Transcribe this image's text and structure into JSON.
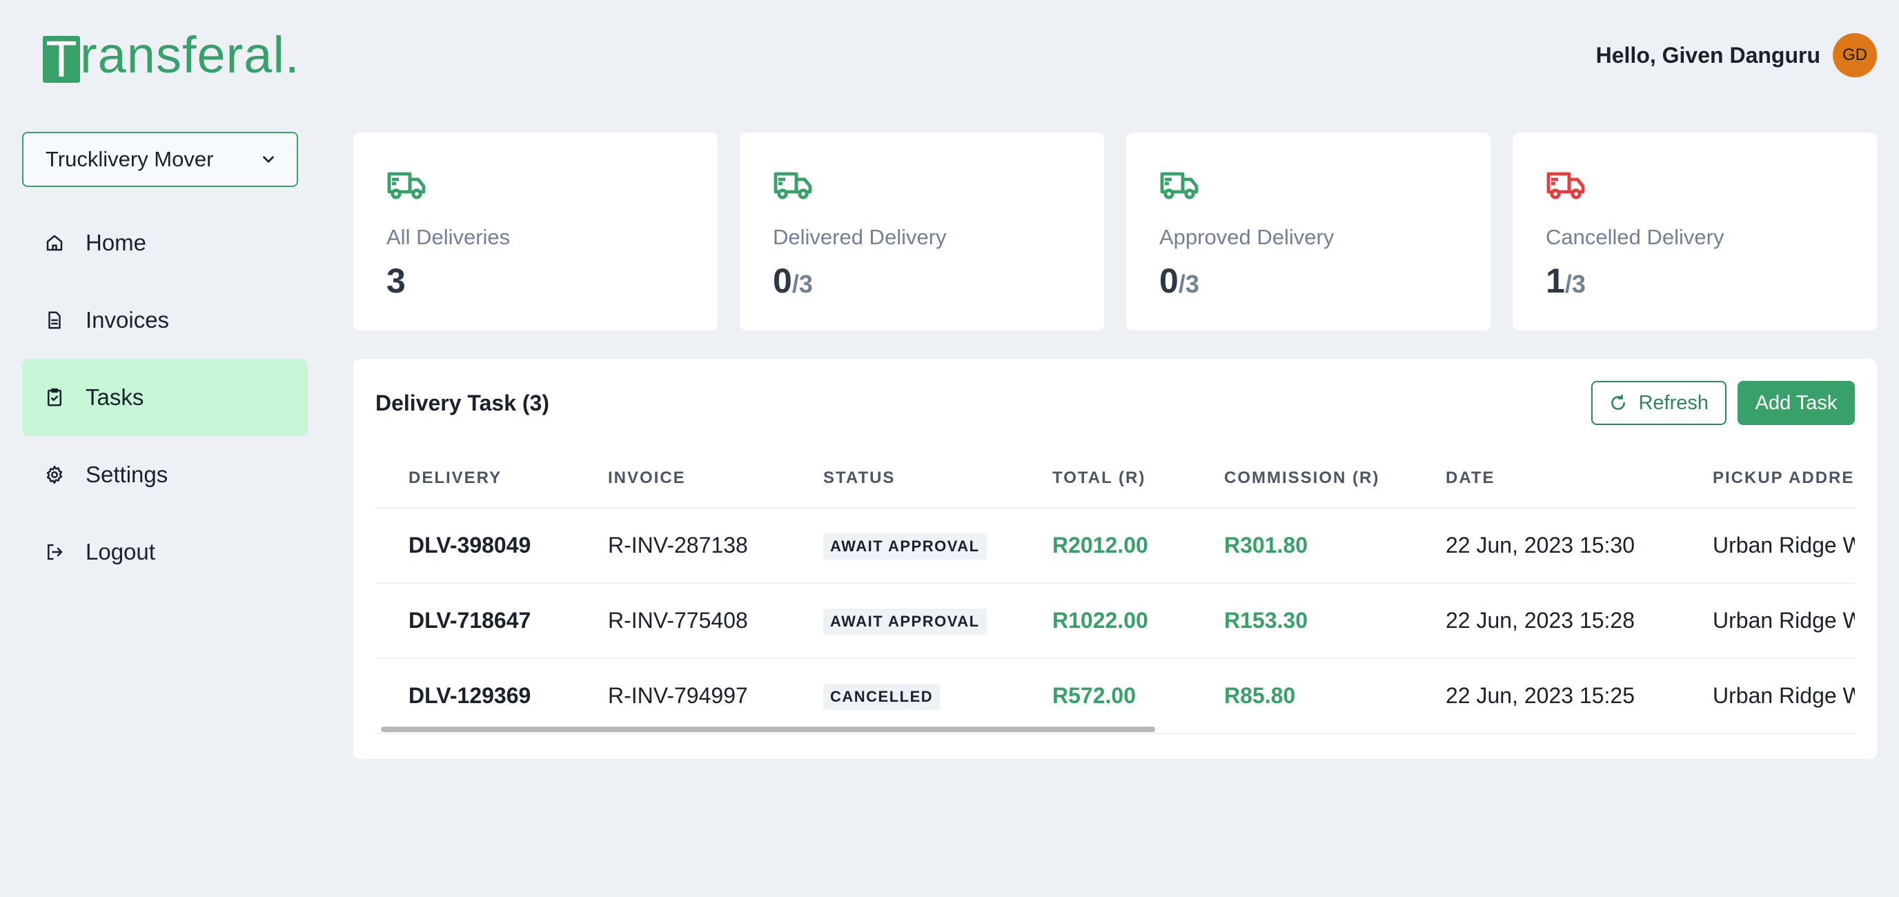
{
  "brand": {
    "logo_initial": "T",
    "logo_rest": "ransferal."
  },
  "header": {
    "greeting": "Hello, Given Danguru",
    "avatar_initials": "GD"
  },
  "sidebar": {
    "company_select": {
      "value": "Trucklivery Mover"
    },
    "items": [
      {
        "label": "Home",
        "icon": "home-icon",
        "active": false
      },
      {
        "label": "Invoices",
        "icon": "file-icon",
        "active": false
      },
      {
        "label": "Tasks",
        "icon": "clipboard-check-icon",
        "active": true
      },
      {
        "label": "Settings",
        "icon": "gear-icon",
        "active": false
      },
      {
        "label": "Logout",
        "icon": "logout-icon",
        "active": false
      }
    ]
  },
  "stats": [
    {
      "label": "All Deliveries",
      "value": "3",
      "of": "",
      "color": "#38a169"
    },
    {
      "label": "Delivered Delivery",
      "value": "0",
      "of": "/3",
      "color": "#38a169"
    },
    {
      "label": "Approved Delivery",
      "value": "0",
      "of": "/3",
      "color": "#38a169"
    },
    {
      "label": "Cancelled Delivery",
      "value": "1",
      "of": "/3",
      "color": "#e53e3e"
    }
  ],
  "tasks": {
    "title": "Delivery Task (3)",
    "refresh_label": "Refresh",
    "add_label": "Add Task",
    "columns": [
      "DELIVERY",
      "INVOICE",
      "STATUS",
      "TOTAL (R)",
      "COMMISSION (R)",
      "DATE",
      "PICKUP ADDRESS"
    ],
    "rows": [
      {
        "delivery": "DLV-398049",
        "invoice": "R-INV-287138",
        "status": "AWAIT APPROVAL",
        "total": "R2012.00",
        "commission": "R301.80",
        "date": "22 Jun, 2023 15:30",
        "pickup": "Urban Ridge W"
      },
      {
        "delivery": "DLV-718647",
        "invoice": "R-INV-775408",
        "status": "AWAIT APPROVAL",
        "total": "R1022.00",
        "commission": "R153.30",
        "date": "22 Jun, 2023 15:28",
        "pickup": "Urban Ridge W"
      },
      {
        "delivery": "DLV-129369",
        "invoice": "R-INV-794997",
        "status": "CANCELLED",
        "total": "R572.00",
        "commission": "R85.80",
        "date": "22 Jun, 2023 15:25",
        "pickup": "Urban Ridge W"
      }
    ]
  },
  "colors": {
    "accent": "#38a169",
    "danger": "#e53e3e",
    "active_bg": "#c6f6d5"
  }
}
